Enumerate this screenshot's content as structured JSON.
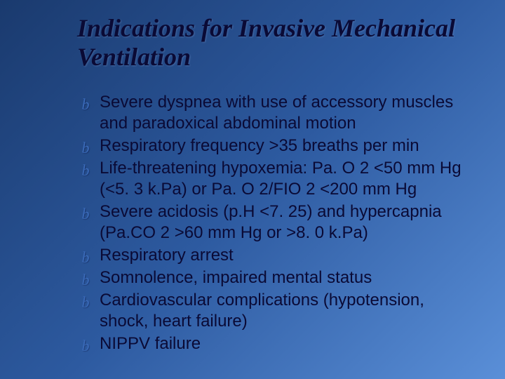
{
  "slide": {
    "title": "Indications for Invasive Mechanical Ventilation",
    "title_font": "Times New Roman Italic Bold",
    "title_fontsize": 36,
    "title_color": "#0a0a35",
    "background_gradient": [
      "#1a3a6e",
      "#2d5aa0",
      "#5a8fd8"
    ],
    "bullet_glyph": "b",
    "bullet_glyph_color": "#3a6ab8",
    "body_fontsize": 24,
    "body_color": "#0a0a35",
    "items": [
      "Severe dyspnea with use of accessory muscles and paradoxical abdominal motion",
      "Respiratory frequency >35 breaths per min",
      "Life-threatening hypoxemia: Pa. O 2 <50 mm Hg (<5. 3 k.Pa) or Pa. O 2/FIO 2 <200 mm Hg",
      " Severe acidosis (p.H <7. 25) and hypercapnia (Pa.CO 2 >60 mm Hg or >8. 0 k.Pa)",
      "Respiratory arrest",
      "Somnolence, impaired mental status",
      "Cardiovascular complications (hypotension, shock, heart failure)",
      "NIPPV failure"
    ]
  }
}
